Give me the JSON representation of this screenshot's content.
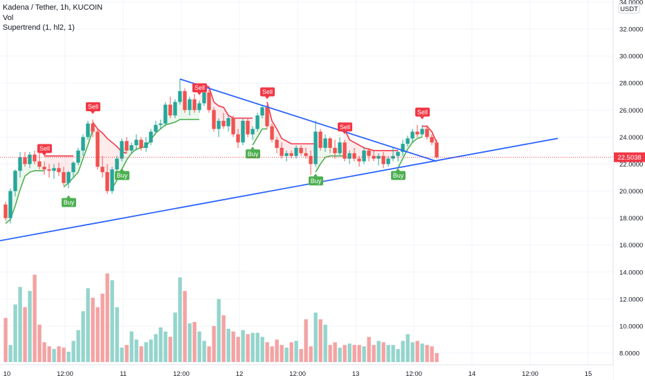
{
  "legend": {
    "symbol": "Kadena / Tether, 1h, KUCOIN",
    "volume": "Vol",
    "indicator": "Supertrend (1, hl2, 1)"
  },
  "price_axis": {
    "currency": "USDT",
    "last_price": "22.5038"
  },
  "colors": {
    "up": "#26a69a",
    "down": "#ef5350",
    "vol_up": "#94d4cc",
    "vol_down": "#f3a3a3",
    "st_up": "#4caf50",
    "st_down": "#f23645",
    "trendline": "#2962ff",
    "last_price": "#f23645",
    "grid": "#f0f3fa",
    "axis_text": "#131722"
  },
  "chart_data": {
    "type": "candlestick",
    "y_ticks": [
      8,
      10,
      12,
      14,
      16,
      18,
      20,
      22,
      24,
      26,
      28,
      30,
      32,
      34
    ],
    "y_tick_labels": [
      "8.0000",
      "10.0000",
      "12.0000",
      "14.0000",
      "16.0000",
      "18.0000",
      "20.0000",
      "22.0000",
      "24.0000",
      "26.0000",
      "28.0000",
      "30.0000",
      "32.0000",
      "34.0000"
    ],
    "ylim": [
      7.0,
      34.4
    ],
    "x_start_label": "10 00:00",
    "x_ticks": [
      {
        "bar": 0,
        "label": "10"
      },
      {
        "bar": 12,
        "label": "12:00"
      },
      {
        "bar": 24,
        "label": "11"
      },
      {
        "bar": 36,
        "label": "12:00"
      },
      {
        "bar": 48,
        "label": "12"
      },
      {
        "bar": 60,
        "label": "12:00"
      },
      {
        "bar": 72,
        "label": "13"
      },
      {
        "bar": 84,
        "label": "12:00"
      },
      {
        "bar": 96,
        "label": "14"
      },
      {
        "bar": 108,
        "label": "12:00"
      },
      {
        "bar": 120,
        "label": "15"
      }
    ],
    "candles": [
      [
        19.0,
        19.2,
        17.8,
        18.0
      ],
      [
        18.0,
        20.2,
        17.6,
        20.0
      ],
      [
        20.0,
        21.6,
        19.6,
        21.5
      ],
      [
        21.5,
        22.9,
        21.0,
        22.5
      ],
      [
        22.5,
        22.9,
        21.8,
        22.0
      ],
      [
        22.0,
        22.9,
        21.7,
        22.7
      ],
      [
        22.7,
        23.0,
        22.0,
        22.2
      ],
      [
        22.2,
        22.8,
        21.6,
        21.8
      ],
      [
        21.8,
        22.2,
        21.2,
        21.6
      ],
      [
        21.6,
        22.0,
        21.0,
        21.5
      ],
      [
        21.5,
        22.0,
        20.9,
        21.7
      ],
      [
        21.7,
        22.1,
        21.1,
        21.4
      ],
      [
        21.4,
        21.8,
        20.4,
        20.6
      ],
      [
        20.6,
        21.5,
        20.2,
        21.4
      ],
      [
        21.4,
        22.2,
        21.0,
        22.1
      ],
      [
        22.1,
        23.2,
        21.9,
        23.0
      ],
      [
        23.0,
        24.2,
        22.6,
        24.0
      ],
      [
        24.0,
        25.2,
        23.8,
        25.0
      ],
      [
        25.0,
        25.3,
        24.0,
        24.4
      ],
      [
        24.4,
        24.6,
        21.6,
        21.8
      ],
      [
        21.8,
        22.6,
        21.0,
        21.4
      ],
      [
        21.4,
        22.0,
        19.8,
        20.0
      ],
      [
        20.0,
        21.8,
        19.8,
        21.6
      ],
      [
        21.6,
        22.6,
        21.2,
        22.4
      ],
      [
        22.4,
        23.9,
        22.2,
        23.7
      ],
      [
        23.7,
        24.0,
        22.8,
        23.0
      ],
      [
        23.0,
        23.6,
        22.8,
        23.4
      ],
      [
        23.4,
        24.2,
        23.0,
        23.8
      ],
      [
        23.8,
        24.0,
        23.0,
        23.2
      ],
      [
        23.2,
        24.0,
        22.9,
        23.6
      ],
      [
        23.6,
        24.6,
        23.4,
        24.4
      ],
      [
        24.4,
        25.2,
        24.2,
        24.9
      ],
      [
        24.9,
        25.3,
        24.6,
        25.0
      ],
      [
        25.0,
        26.6,
        24.8,
        26.4
      ],
      [
        26.4,
        27.0,
        25.4,
        25.6
      ],
      [
        25.6,
        26.8,
        25.4,
        26.6
      ],
      [
        26.6,
        28.3,
        26.4,
        27.4
      ],
      [
        27.4,
        27.6,
        25.8,
        26.0
      ],
      [
        26.0,
        27.0,
        25.6,
        26.8
      ],
      [
        26.8,
        27.2,
        25.8,
        26.0
      ],
      [
        26.0,
        26.7,
        25.8,
        26.5
      ],
      [
        26.5,
        27.6,
        26.3,
        27.3
      ],
      [
        27.3,
        27.5,
        25.8,
        26.0
      ],
      [
        26.0,
        26.2,
        24.4,
        24.6
      ],
      [
        24.6,
        25.4,
        24.0,
        25.2
      ],
      [
        25.2,
        25.8,
        24.6,
        24.8
      ],
      [
        24.8,
        25.6,
        24.4,
        25.4
      ],
      [
        25.4,
        25.6,
        24.0,
        24.2
      ],
      [
        24.2,
        24.6,
        23.2,
        23.6
      ],
      [
        23.6,
        25.4,
        23.4,
        25.2
      ],
      [
        25.2,
        25.4,
        24.0,
        24.2
      ],
      [
        24.2,
        24.8,
        23.8,
        24.6
      ],
      [
        24.6,
        25.8,
        24.4,
        25.6
      ],
      [
        25.6,
        26.4,
        25.4,
        26.2
      ],
      [
        26.2,
        26.4,
        24.6,
        24.8
      ],
      [
        24.8,
        25.0,
        23.6,
        23.8
      ],
      [
        23.8,
        24.0,
        22.8,
        23.2
      ],
      [
        23.2,
        23.6,
        22.4,
        22.6
      ],
      [
        22.6,
        23.0,
        22.2,
        22.8
      ],
      [
        22.8,
        23.0,
        22.4,
        22.6
      ],
      [
        22.6,
        23.4,
        22.4,
        23.2
      ],
      [
        23.2,
        23.4,
        22.6,
        22.8
      ],
      [
        22.8,
        23.2,
        22.4,
        22.6
      ],
      [
        22.6,
        23.0,
        21.2,
        22.0
      ],
      [
        22.0,
        25.2,
        21.8,
        24.4
      ],
      [
        24.4,
        24.6,
        23.0,
        23.2
      ],
      [
        23.2,
        24.2,
        22.9,
        23.9
      ],
      [
        23.9,
        24.0,
        22.8,
        23.2
      ],
      [
        23.2,
        23.8,
        22.4,
        22.8
      ],
      [
        22.8,
        24.0,
        22.6,
        23.6
      ],
      [
        23.6,
        23.8,
        22.2,
        22.4
      ],
      [
        22.4,
        23.0,
        22.0,
        22.8
      ],
      [
        22.8,
        23.2,
        22.2,
        22.4
      ],
      [
        22.4,
        22.6,
        21.8,
        22.2
      ],
      [
        22.2,
        23.2,
        22.0,
        23.0
      ],
      [
        23.0,
        23.2,
        22.2,
        22.6
      ],
      [
        22.6,
        23.0,
        22.2,
        22.4
      ],
      [
        22.4,
        22.8,
        21.9,
        22.6
      ],
      [
        22.6,
        22.9,
        21.7,
        22.0
      ],
      [
        22.0,
        22.6,
        21.8,
        22.4
      ],
      [
        22.4,
        23.2,
        22.2,
        22.6
      ],
      [
        22.6,
        23.0,
        22.2,
        22.9
      ],
      [
        22.9,
        23.8,
        22.6,
        23.5
      ],
      [
        23.5,
        24.1,
        23.3,
        23.9
      ],
      [
        23.9,
        24.6,
        23.6,
        24.4
      ],
      [
        24.4,
        24.9,
        24.0,
        24.2
      ],
      [
        24.2,
        24.9,
        24.0,
        24.6
      ],
      [
        24.6,
        24.9,
        23.8,
        24.0
      ],
      [
        24.0,
        24.2,
        23.4,
        23.6
      ],
      [
        23.6,
        23.8,
        22.4,
        22.5
      ]
    ],
    "volume": [
      10.6,
      8.6,
      11.6,
      12.9,
      11.4,
      12.6,
      13.8,
      10.1,
      8.8,
      8.5,
      8.3,
      8.5,
      8.4,
      8.1,
      8.9,
      9.7,
      11.1,
      12.8,
      12.1,
      11.4,
      12.4,
      13.9,
      13.4,
      11.4,
      8.4,
      8.6,
      9.6,
      9.0,
      8.5,
      8.8,
      9.0,
      9.4,
      9.9,
      9.6,
      9.2,
      11.0,
      13.6,
      12.6,
      10.2,
      10.3,
      9.6,
      8.9,
      8.5,
      10.0,
      12.0,
      10.8,
      9.8,
      9.6,
      9.2,
      9.7,
      9.4,
      9.5,
      9.5,
      9.2,
      8.8,
      8.5,
      9.0,
      8.6,
      8.4,
      8.8,
      8.9,
      8.3,
      10.5,
      8.5,
      11.0,
      10.5,
      10.1,
      8.6,
      8.8,
      8.4,
      8.6,
      8.7,
      8.6,
      8.6,
      8.5,
      9.2,
      8.6,
      8.9,
      8.8,
      8.6,
      8.6,
      8.3,
      8.9,
      9.4,
      8.8,
      8.9,
      8.7,
      8.6,
      8.5,
      8.0
    ],
    "vol_ymap": {
      "ref_low": 8.0,
      "ref_high": 14.0
    },
    "supertrend_up": [
      [
        0,
        17.6
      ],
      [
        1,
        17.9
      ],
      [
        2,
        18.9
      ],
      [
        3,
        20.1
      ],
      [
        4,
        21.1
      ],
      [
        5,
        21.4
      ],
      [
        6,
        21.5
      ],
      [
        7,
        21.5
      ],
      [
        8,
        21.5
      ]
    ],
    "supertrend_down": [
      [
        8,
        22.6
      ],
      [
        9,
        22.6
      ],
      [
        10,
        22.6
      ],
      [
        11,
        22.6
      ],
      [
        12,
        22.6
      ],
      [
        13,
        22.6
      ],
      [
        14,
        22.6
      ]
    ],
    "supertrend_up2": [
      [
        12,
        20.3
      ],
      [
        13,
        20.6
      ],
      [
        14,
        21.0
      ],
      [
        15,
        21.4
      ],
      [
        16,
        22.4
      ],
      [
        17,
        23.4
      ],
      [
        18,
        24.5
      ]
    ],
    "supertrend_down2": [
      [
        18,
        25.1
      ],
      [
        19,
        24.6
      ],
      [
        20,
        24.3
      ],
      [
        21,
        23.9
      ],
      [
        22,
        23.6
      ],
      [
        23,
        23.3
      ],
      [
        24,
        22.9
      ],
      [
        25,
        22.8
      ]
    ],
    "supertrend_up3": [
      [
        22,
        20.2
      ],
      [
        23,
        20.8
      ],
      [
        24,
        21.6
      ],
      [
        25,
        22.3
      ],
      [
        26,
        22.8
      ],
      [
        27,
        23.1
      ],
      [
        28,
        23.2
      ],
      [
        29,
        23.3
      ],
      [
        30,
        23.8
      ],
      [
        31,
        24.3
      ],
      [
        32,
        24.6
      ],
      [
        33,
        24.9
      ],
      [
        34,
        25.0
      ],
      [
        35,
        25.1
      ],
      [
        36,
        25.3
      ],
      [
        37,
        25.3
      ],
      [
        38,
        25.3
      ],
      [
        39,
        25.3
      ],
      [
        40,
        25.3
      ]
    ],
    "supertrend_down3": [
      [
        40,
        27.9
      ],
      [
        41,
        27.9
      ],
      [
        42,
        27.7
      ],
      [
        43,
        26.6
      ],
      [
        44,
        26.3
      ],
      [
        45,
        26.2
      ],
      [
        46,
        25.6
      ],
      [
        47,
        25.4
      ],
      [
        48,
        25.4
      ],
      [
        49,
        25.4
      ],
      [
        50,
        25.4
      ],
      [
        51,
        25.4
      ]
    ],
    "supertrend_up4": [
      [
        51,
        23.4
      ],
      [
        52,
        24.0
      ],
      [
        53,
        24.6
      ],
      [
        54,
        24.6
      ]
    ],
    "supertrend_down4": [
      [
        54,
        26.6
      ],
      [
        55,
        25.2
      ],
      [
        56,
        24.6
      ],
      [
        57,
        23.9
      ],
      [
        58,
        23.7
      ],
      [
        59,
        23.5
      ],
      [
        60,
        23.5
      ],
      [
        61,
        23.5
      ],
      [
        62,
        23.5
      ],
      [
        63,
        23.5
      ],
      [
        64,
        23.5
      ]
    ],
    "supertrend_up5": [
      [
        64,
        21.4
      ],
      [
        65,
        22.0
      ],
      [
        66,
        22.5
      ],
      [
        67,
        22.6
      ],
      [
        68,
        22.6
      ],
      [
        69,
        22.6
      ],
      [
        70,
        22.6
      ]
    ],
    "supertrend_down5": [
      [
        70,
        24.6
      ],
      [
        71,
        23.8
      ],
      [
        72,
        23.6
      ],
      [
        73,
        23.4
      ],
      [
        74,
        23.2
      ],
      [
        75,
        23.1
      ],
      [
        76,
        23.0
      ],
      [
        77,
        23.0
      ],
      [
        78,
        23.0
      ],
      [
        79,
        23.0
      ],
      [
        80,
        23.0
      ],
      [
        81,
        23.0
      ]
    ],
    "supertrend_up6": [
      [
        81,
        21.7
      ],
      [
        82,
        22.4
      ],
      [
        83,
        23.1
      ],
      [
        84,
        23.6
      ],
      [
        85,
        23.9
      ],
      [
        86,
        24.0
      ]
    ],
    "supertrend_down6": [
      [
        86,
        24.8
      ],
      [
        87,
        24.8
      ],
      [
        88,
        24.4
      ],
      [
        89,
        23.6
      ]
    ],
    "signals": [
      {
        "bar": 8,
        "type": "Sell"
      },
      {
        "bar": 13,
        "type": "Buy"
      },
      {
        "bar": 18,
        "type": "Sell"
      },
      {
        "bar": 24,
        "type": "Buy"
      },
      {
        "bar": 40,
        "type": "Sell"
      },
      {
        "bar": 51,
        "type": "Buy"
      },
      {
        "bar": 54,
        "type": "Sell"
      },
      {
        "bar": 64,
        "type": "Buy"
      },
      {
        "bar": 70,
        "type": "Sell"
      },
      {
        "bar": 81,
        "type": "Buy"
      },
      {
        "bar": 86,
        "type": "Sell"
      }
    ],
    "trendlines": [
      {
        "name": "descending-resistance",
        "points": [
          [
            36,
            28.3
          ],
          [
            89,
            22.2
          ]
        ]
      },
      {
        "name": "ascending-support",
        "points": [
          [
            -1.5,
            16.3
          ],
          [
            114,
            23.9
          ]
        ]
      }
    ]
  }
}
